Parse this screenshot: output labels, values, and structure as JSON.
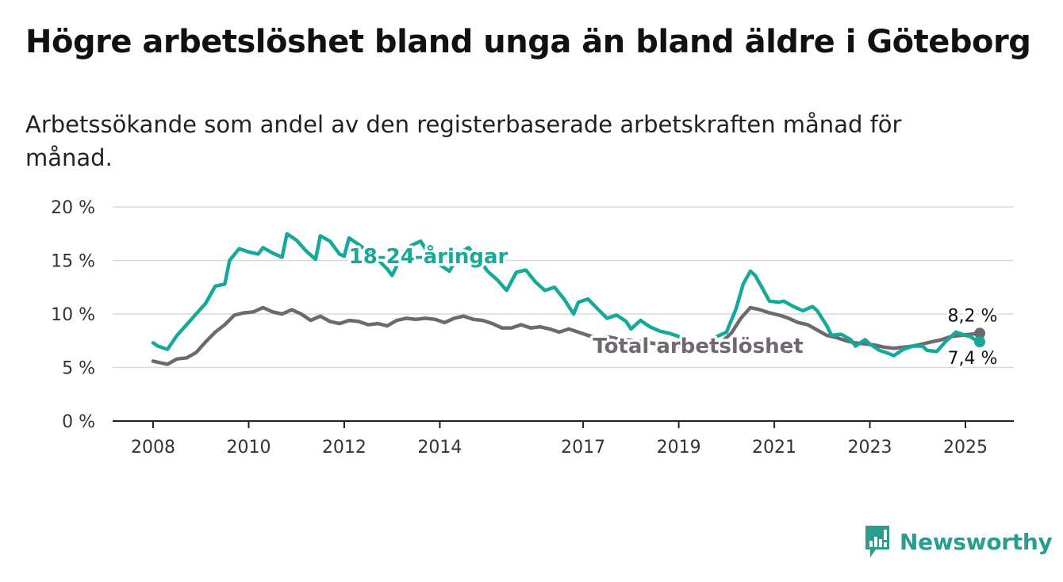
{
  "title": "Högre arbetslöshet bland unga än bland äldre i Göteborg",
  "subtitle": "Arbetssökande som andel av den registerbaserade arbetskraften månad för månad.",
  "brand": {
    "name": "Newsworthy",
    "icon": "newsworthy-logo-icon",
    "color": "#2a9d8f"
  },
  "chart_data": {
    "type": "line",
    "y_ticks": [
      "0 %",
      "5 %",
      "10 %",
      "15 %",
      "20 %"
    ],
    "y_tick_values": [
      0,
      5,
      10,
      15,
      20
    ],
    "x_ticks": [
      "2008",
      "2010",
      "2012",
      "2014",
      "2017",
      "2019",
      "2021",
      "2023",
      "2025"
    ],
    "x_tick_values": [
      2008,
      2010,
      2012,
      2014,
      2017,
      2019,
      2021,
      2023,
      2025
    ],
    "ylim": [
      0,
      20
    ],
    "xlim": [
      2007.2,
      2026.0
    ],
    "grid": true,
    "legend": "inline labels",
    "series": [
      {
        "name": "Total arbetslöshet",
        "color": "#6e6870",
        "end_label": "8,2 %",
        "points": [
          [
            2008.0,
            5.6
          ],
          [
            2008.1,
            5.5
          ],
          [
            2008.3,
            5.3
          ],
          [
            2008.5,
            5.8
          ],
          [
            2008.7,
            5.9
          ],
          [
            2008.9,
            6.4
          ],
          [
            2009.1,
            7.4
          ],
          [
            2009.3,
            8.3
          ],
          [
            2009.5,
            9.0
          ],
          [
            2009.7,
            9.9
          ],
          [
            2009.9,
            10.1
          ],
          [
            2010.1,
            10.2
          ],
          [
            2010.3,
            10.6
          ],
          [
            2010.5,
            10.2
          ],
          [
            2010.7,
            10.0
          ],
          [
            2010.9,
            10.4
          ],
          [
            2011.1,
            10.0
          ],
          [
            2011.3,
            9.4
          ],
          [
            2011.5,
            9.8
          ],
          [
            2011.7,
            9.3
          ],
          [
            2011.9,
            9.1
          ],
          [
            2012.1,
            9.4
          ],
          [
            2012.3,
            9.3
          ],
          [
            2012.5,
            9.0
          ],
          [
            2012.7,
            9.1
          ],
          [
            2012.9,
            8.9
          ],
          [
            2013.1,
            9.4
          ],
          [
            2013.3,
            9.6
          ],
          [
            2013.5,
            9.5
          ],
          [
            2013.7,
            9.6
          ],
          [
            2013.9,
            9.5
          ],
          [
            2014.1,
            9.2
          ],
          [
            2014.3,
            9.6
          ],
          [
            2014.5,
            9.8
          ],
          [
            2014.7,
            9.5
          ],
          [
            2014.9,
            9.4
          ],
          [
            2015.1,
            9.1
          ],
          [
            2015.3,
            8.7
          ],
          [
            2015.5,
            8.7
          ],
          [
            2015.7,
            9.0
          ],
          [
            2015.9,
            8.7
          ],
          [
            2016.1,
            8.8
          ],
          [
            2016.3,
            8.6
          ],
          [
            2016.5,
            8.3
          ],
          [
            2016.7,
            8.6
          ],
          [
            2016.9,
            8.3
          ],
          [
            2017.1,
            8.0
          ],
          [
            2017.3,
            7.8
          ],
          [
            2017.5,
            7.9
          ],
          [
            2017.7,
            7.7
          ],
          [
            2017.9,
            7.6
          ],
          [
            2018.1,
            7.5
          ],
          [
            2018.4,
            7.3
          ],
          [
            2018.7,
            7.1
          ],
          [
            2019.0,
            7.0
          ],
          [
            2019.3,
            7.0
          ],
          [
            2019.6,
            7.2
          ],
          [
            2019.9,
            7.4
          ],
          [
            2020.1,
            8.2
          ],
          [
            2020.3,
            9.6
          ],
          [
            2020.5,
            10.6
          ],
          [
            2020.7,
            10.4
          ],
          [
            2020.9,
            10.1
          ],
          [
            2021.1,
            9.9
          ],
          [
            2021.3,
            9.6
          ],
          [
            2021.5,
            9.2
          ],
          [
            2021.7,
            9.0
          ],
          [
            2021.9,
            8.5
          ],
          [
            2022.1,
            8.0
          ],
          [
            2022.3,
            7.8
          ],
          [
            2022.5,
            7.5
          ],
          [
            2022.7,
            7.3
          ],
          [
            2022.9,
            7.2
          ],
          [
            2023.1,
            7.1
          ],
          [
            2023.3,
            6.9
          ],
          [
            2023.5,
            6.8
          ],
          [
            2023.7,
            6.9
          ],
          [
            2023.9,
            7.0
          ],
          [
            2024.1,
            7.2
          ],
          [
            2024.3,
            7.4
          ],
          [
            2024.5,
            7.6
          ],
          [
            2024.7,
            7.9
          ],
          [
            2024.9,
            8.0
          ],
          [
            2025.1,
            8.1
          ],
          [
            2025.3,
            8.2
          ]
        ]
      },
      {
        "name": "18-24-åringar",
        "color": "#16a99b",
        "end_label": "7,4 %",
        "points": [
          [
            2008.0,
            7.3
          ],
          [
            2008.1,
            7.0
          ],
          [
            2008.3,
            6.7
          ],
          [
            2008.5,
            8.0
          ],
          [
            2008.7,
            9.0
          ],
          [
            2008.9,
            10.0
          ],
          [
            2009.1,
            11.0
          ],
          [
            2009.3,
            12.6
          ],
          [
            2009.5,
            12.8
          ],
          [
            2009.6,
            15.0
          ],
          [
            2009.8,
            16.1
          ],
          [
            2010.0,
            15.8
          ],
          [
            2010.2,
            15.6
          ],
          [
            2010.3,
            16.2
          ],
          [
            2010.5,
            15.7
          ],
          [
            2010.7,
            15.3
          ],
          [
            2010.8,
            17.5
          ],
          [
            2011.0,
            16.9
          ],
          [
            2011.2,
            15.9
          ],
          [
            2011.4,
            15.1
          ],
          [
            2011.5,
            17.3
          ],
          [
            2011.7,
            16.8
          ],
          [
            2011.9,
            15.6
          ],
          [
            2012.0,
            15.4
          ],
          [
            2012.1,
            17.1
          ],
          [
            2012.3,
            16.5
          ],
          [
            2012.5,
            15.8
          ],
          [
            2012.7,
            15.1
          ],
          [
            2012.9,
            14.2
          ],
          [
            2013.0,
            13.6
          ],
          [
            2013.2,
            15.4
          ],
          [
            2013.4,
            16.4
          ],
          [
            2013.6,
            16.8
          ],
          [
            2013.8,
            15.4
          ],
          [
            2014.0,
            14.6
          ],
          [
            2014.2,
            14.0
          ],
          [
            2014.4,
            15.6
          ],
          [
            2014.6,
            16.2
          ],
          [
            2014.8,
            15.2
          ],
          [
            2015.0,
            14.0
          ],
          [
            2015.2,
            13.2
          ],
          [
            2015.4,
            12.2
          ],
          [
            2015.6,
            13.9
          ],
          [
            2015.8,
            14.1
          ],
          [
            2016.0,
            13.0
          ],
          [
            2016.2,
            12.2
          ],
          [
            2016.4,
            12.5
          ],
          [
            2016.6,
            11.4
          ],
          [
            2016.8,
            10.0
          ],
          [
            2016.9,
            11.1
          ],
          [
            2017.1,
            11.4
          ],
          [
            2017.3,
            10.5
          ],
          [
            2017.5,
            9.6
          ],
          [
            2017.7,
            9.9
          ],
          [
            2017.9,
            9.3
          ],
          [
            2018.0,
            8.6
          ],
          [
            2018.2,
            9.4
          ],
          [
            2018.4,
            8.8
          ],
          [
            2018.6,
            8.4
          ],
          [
            2018.8,
            8.2
          ],
          [
            2019.0,
            7.9
          ],
          [
            2019.2,
            7.2
          ],
          [
            2019.4,
            6.9
          ],
          [
            2019.6,
            7.3
          ],
          [
            2019.8,
            7.9
          ],
          [
            2020.0,
            8.3
          ],
          [
            2020.2,
            10.5
          ],
          [
            2020.35,
            12.8
          ],
          [
            2020.5,
            14.0
          ],
          [
            2020.6,
            13.6
          ],
          [
            2020.8,
            12.0
          ],
          [
            2020.9,
            11.2
          ],
          [
            2021.1,
            11.1
          ],
          [
            2021.2,
            11.2
          ],
          [
            2021.4,
            10.7
          ],
          [
            2021.6,
            10.3
          ],
          [
            2021.8,
            10.7
          ],
          [
            2021.9,
            10.3
          ],
          [
            2022.1,
            8.9
          ],
          [
            2022.2,
            8.0
          ],
          [
            2022.4,
            8.1
          ],
          [
            2022.6,
            7.6
          ],
          [
            2022.7,
            7.0
          ],
          [
            2022.9,
            7.6
          ],
          [
            2023.0,
            7.2
          ],
          [
            2023.2,
            6.6
          ],
          [
            2023.4,
            6.3
          ],
          [
            2023.5,
            6.1
          ],
          [
            2023.7,
            6.7
          ],
          [
            2023.9,
            7.0
          ],
          [
            2024.1,
            7.0
          ],
          [
            2024.2,
            6.6
          ],
          [
            2024.4,
            6.5
          ],
          [
            2024.6,
            7.5
          ],
          [
            2024.8,
            8.3
          ],
          [
            2025.0,
            8.0
          ],
          [
            2025.1,
            7.9
          ],
          [
            2025.2,
            7.6
          ],
          [
            2025.3,
            7.4
          ]
        ]
      }
    ]
  }
}
